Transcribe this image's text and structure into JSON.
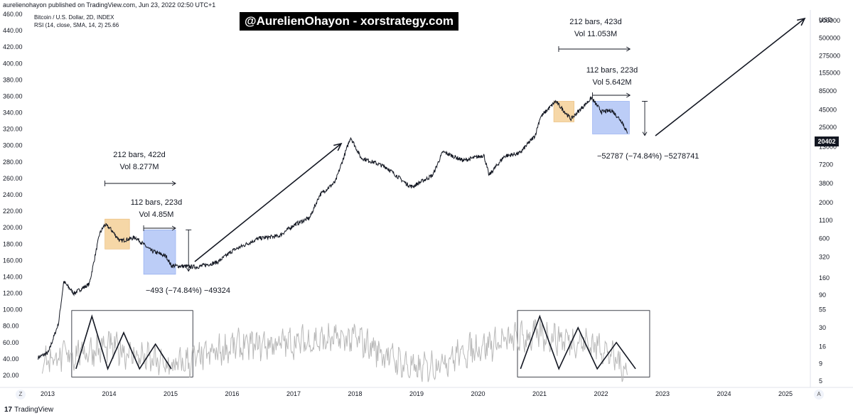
{
  "header": {
    "publisher_line": "aurelienohayon published on TradingView.com, Jun 23, 2022 02:50 UTC+1",
    "legend_symbol": "Bitcoin / U.S. Dollar, 2D, INDEX",
    "legend_rsi": "RSI (14, close, SMA, 14, 2)  25.66"
  },
  "banner": "@AurelienOhayon - xorstrategy.com",
  "footer": {
    "logo_mark": "17",
    "logo_text": "TradingView",
    "z_button": "Z",
    "a_button": "A"
  },
  "price_tag": "20402",
  "annotations": {
    "cycle1_long": {
      "line1": "212 bars, 422d",
      "line2": "Vol 8.277M"
    },
    "cycle1_short": {
      "line1": "112 bars, 223d",
      "line2": "Vol 4.85M"
    },
    "cycle1_drop": "−493 (−74.84%) −49324",
    "cycle2_long": {
      "line1": "212 bars, 423d",
      "line2": "Vol 11.053M"
    },
    "cycle2_short": {
      "line1": "112 bars, 223d",
      "line2": "Vol 5.642M"
    },
    "cycle2_drop": "−52787 (−74.84%) −5278741"
  },
  "colors": {
    "price_line": "#131722",
    "rsi_line": "#b8b8b8",
    "orange_box": "#f6d7a7",
    "blue_box": "#bccdf7",
    "grid": "#ffffff",
    "axis_text": "#131722"
  },
  "chart_data": {
    "type": "line",
    "title": "",
    "left_axis": {
      "ticks": [
        "460.00",
        "440.00",
        "420.00",
        "400.00",
        "380.00",
        "360.00",
        "340.00",
        "320.00",
        "300.00",
        "280.00",
        "260.00",
        "240.00",
        "220.00",
        "200.00",
        "180.00",
        "160.00",
        "140.00",
        "120.00",
        "100.00",
        "80.00",
        "60.00",
        "40.00",
        "20.00"
      ],
      "range": [
        12,
        462
      ]
    },
    "right_axis": {
      "unit": "USD",
      "ticks": [
        "900000",
        "500000",
        "275000",
        "155000",
        "85000",
        "45000",
        "25000",
        "13000",
        "7200",
        "3800",
        "2000",
        "1100",
        "600",
        "320",
        "160",
        "90",
        "55",
        "30",
        "16",
        "9",
        "5"
      ],
      "scale": "log"
    },
    "x_axis": {
      "ticks": [
        "2013",
        "2014",
        "2015",
        "2016",
        "2017",
        "2018",
        "2019",
        "2020",
        "2021",
        "2022",
        "2023",
        "2024",
        "2025"
      ]
    },
    "series": [
      {
        "role": "price",
        "scale": "log (right axis, USD)",
        "x": [
          "2012-11",
          "2013-01",
          "2013-03",
          "2013-04",
          "2013-06",
          "2013-09",
          "2013-11",
          "2013-12",
          "2014-01",
          "2014-03",
          "2014-06",
          "2014-09",
          "2014-12",
          "2015-01",
          "2015-06",
          "2015-10",
          "2016-01",
          "2016-06",
          "2016-10",
          "2017-01",
          "2017-04",
          "2017-06",
          "2017-09",
          "2017-12",
          "2018-02",
          "2018-05",
          "2018-07",
          "2018-11",
          "2018-12",
          "2019-04",
          "2019-06",
          "2019-10",
          "2020-02",
          "2020-03",
          "2020-06",
          "2020-09",
          "2020-12",
          "2021-01",
          "2021-04",
          "2021-07",
          "2021-11",
          "2022-01",
          "2022-03",
          "2022-05",
          "2022-06"
        ],
        "y": [
          11,
          13,
          35,
          140,
          95,
          130,
          700,
          950,
          850,
          550,
          620,
          400,
          330,
          240,
          230,
          270,
          400,
          600,
          650,
          950,
          1200,
          2600,
          4000,
          18000,
          9000,
          7500,
          6500,
          3700,
          3400,
          5000,
          11000,
          8200,
          9800,
          5000,
          9500,
          10500,
          19000,
          35000,
          60000,
          33000,
          67000,
          42000,
          44000,
          30000,
          20402
        ]
      },
      {
        "role": "rsi",
        "scale": "left axis, RSI 0-100",
        "x": [
          "2013",
          "2014",
          "2015",
          "2016",
          "2017",
          "2018",
          "2019",
          "2020",
          "2021",
          "2022",
          "2022-06"
        ],
        "y": [
          40,
          55,
          30,
          55,
          60,
          65,
          25,
          55,
          70,
          55,
          25.66
        ]
      }
    ]
  }
}
